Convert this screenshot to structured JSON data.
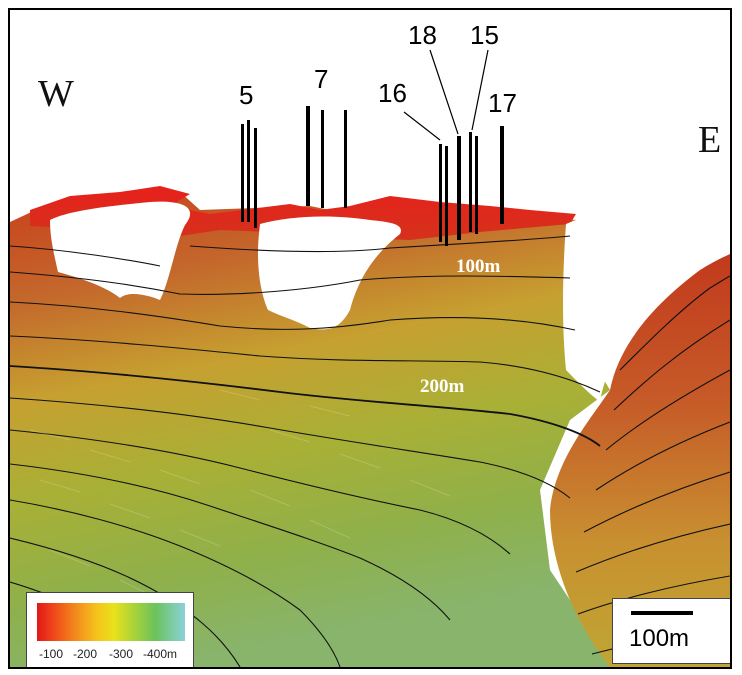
{
  "compass": {
    "west": "W",
    "east": "E"
  },
  "wells": [
    "5",
    "7",
    "16",
    "18",
    "15",
    "17"
  ],
  "contours": {
    "upper": "100m",
    "lower": "200m"
  },
  "legend": {
    "ticks": [
      "-100",
      "-200",
      "-300",
      "-400m"
    ],
    "colors": [
      "#e01818",
      "#f28a1c",
      "#e8e21c",
      "#6cc25c",
      "#8ad2d8"
    ]
  },
  "scale": {
    "label": "100m"
  }
}
